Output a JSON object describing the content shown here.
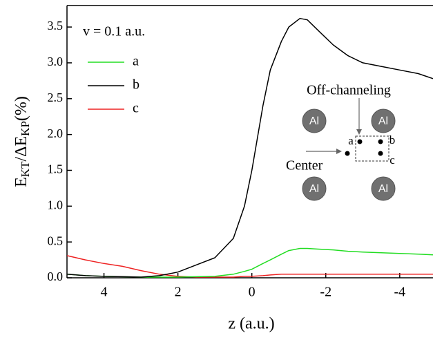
{
  "chart_data": {
    "type": "line",
    "x_label": "z (a.u.)",
    "y_label": [
      "E",
      "KT",
      "/ΔE",
      "KP",
      "(%)"
    ],
    "annotation": "v = 0.1 a.u.",
    "xlim": [
      5,
      -4.9
    ],
    "ylim": [
      0,
      3.8
    ],
    "xticks": [
      4,
      2,
      0,
      -2,
      -4
    ],
    "yticks": [
      {
        "value": 0,
        "label": "0.0"
      },
      {
        "value": 0.5,
        "label": "0.5"
      },
      {
        "value": 1,
        "label": "1.0"
      },
      {
        "value": 1.5,
        "label": "1.5"
      },
      {
        "value": 2,
        "label": "2.0"
      },
      {
        "value": 2.5,
        "label": "2.5"
      },
      {
        "value": 3,
        "label": "3.0"
      },
      {
        "value": 3.5,
        "label": "3.5"
      }
    ],
    "x": [
      5,
      4.5,
      4,
      3.5,
      3,
      2.5,
      2,
      1.5,
      1,
      0.5,
      0.2,
      0,
      -0.3,
      -0.5,
      -0.8,
      -1,
      -1.3,
      -1.5,
      -1.8,
      -2.2,
      -2.6,
      -3,
      -3.5,
      -4,
      -4.5,
      -4.9
    ],
    "series": [
      {
        "name": "a",
        "color": "#22dd22",
        "values": [
          0.05,
          0.03,
          0.02,
          0.015,
          0.01,
          0.01,
          0.01,
          0.015,
          0.02,
          0.05,
          0.09,
          0.12,
          0.2,
          0.25,
          0.33,
          0.38,
          0.41,
          0.41,
          0.4,
          0.39,
          0.37,
          0.36,
          0.35,
          0.34,
          0.33,
          0.32
        ]
      },
      {
        "name": "b",
        "color": "#000000",
        "values": [
          0.05,
          0.03,
          0.02,
          0.015,
          0.01,
          0.03,
          0.08,
          0.18,
          0.28,
          0.55,
          1.0,
          1.5,
          2.4,
          2.9,
          3.3,
          3.5,
          3.62,
          3.6,
          3.45,
          3.25,
          3.1,
          3.0,
          2.95,
          2.9,
          2.85,
          2.78
        ]
      },
      {
        "name": "c",
        "color": "#ee2222",
        "values": [
          0.31,
          0.25,
          0.2,
          0.16,
          0.1,
          0.05,
          0.02,
          0.01,
          0.01,
          0.01,
          0.02,
          0.02,
          0.03,
          0.04,
          0.05,
          0.05,
          0.05,
          0.05,
          0.05,
          0.05,
          0.05,
          0.05,
          0.05,
          0.05,
          0.05,
          0.05
        ]
      }
    ],
    "inset": {
      "off_channeling": "Off-channeling",
      "center": "Center",
      "atom": "Al",
      "points": [
        "a",
        "b",
        "c"
      ]
    }
  }
}
